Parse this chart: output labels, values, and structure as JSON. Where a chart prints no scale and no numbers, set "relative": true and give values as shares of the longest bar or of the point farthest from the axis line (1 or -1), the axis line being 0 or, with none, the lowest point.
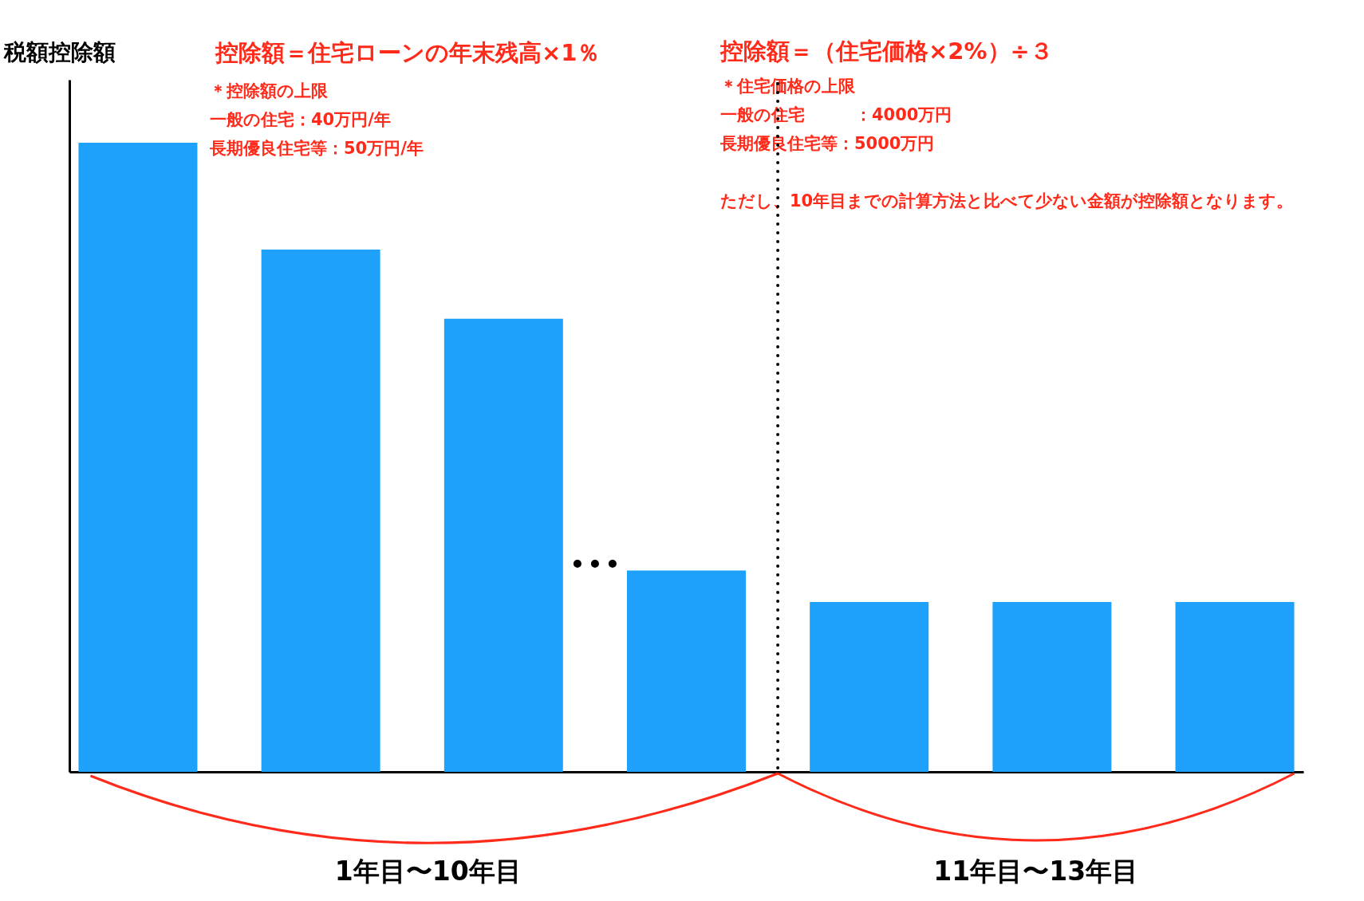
{
  "chart_data": {
    "type": "bar",
    "relative": true,
    "ylabel": "税額控除額",
    "categories": [
      null,
      null,
      null,
      null,
      null,
      null,
      null
    ],
    "values": [
      1,
      0.83,
      0.72,
      0.32,
      0.27,
      0.27,
      0.27
    ],
    "color": "#1da1fa",
    "annotations": [
      "控除額＝住宅ローンの年末残高×1％",
      "＊控除額の上限",
      "一般の住宅：40万円/年",
      "長期優良住宅等：50万円/年",
      "控除額＝（住宅価格×2%）÷３",
      "＊住宅価格の上限",
      "一般の住宅　　　：4000万円",
      "長期優良住宅等：5000万円",
      "ただし、10年目までの計算方法と比べて少ない金額が控除額となります。",
      "1年目〜10年目",
      "11年目〜13年目"
    ]
  }
}
